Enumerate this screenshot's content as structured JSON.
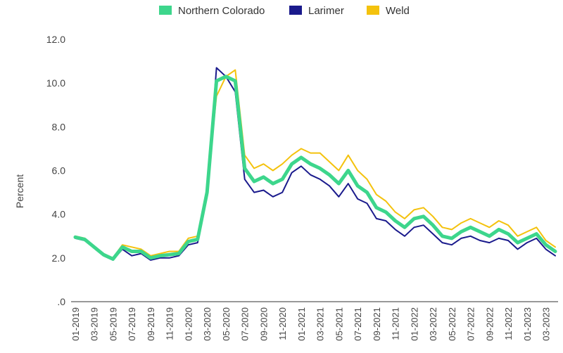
{
  "chart_data": {
    "type": "line",
    "ylabel": "Percent",
    "ylim": [
      0,
      12
    ],
    "yticks": [
      ".0",
      "2.0",
      "4.0",
      "6.0",
      "8.0",
      "10.0",
      "12.0"
    ],
    "legend_position": "top-center",
    "grid": false,
    "x": [
      "01-2019",
      "02-2019",
      "03-2019",
      "04-2019",
      "05-2019",
      "06-2019",
      "07-2019",
      "08-2019",
      "09-2019",
      "10-2019",
      "11-2019",
      "12-2019",
      "01-2020",
      "02-2020",
      "03-2020",
      "04-2020",
      "05-2020",
      "06-2020",
      "07-2020",
      "08-2020",
      "09-2020",
      "10-2020",
      "11-2020",
      "12-2020",
      "01-2021",
      "02-2021",
      "03-2021",
      "04-2021",
      "05-2021",
      "06-2021",
      "07-2021",
      "08-2021",
      "09-2021",
      "10-2021",
      "11-2021",
      "12-2021",
      "01-2022",
      "02-2022",
      "03-2022",
      "04-2022",
      "05-2022",
      "06-2022",
      "07-2022",
      "08-2022",
      "09-2022",
      "10-2022",
      "11-2022",
      "12-2022",
      "01-2023",
      "02-2023",
      "03-2023",
      "04-2023"
    ],
    "xtick_labels": [
      "01-2019",
      "03-2019",
      "05-2019",
      "07-2019",
      "09-2019",
      "11-2019",
      "01-2020",
      "03-2020",
      "05-2020",
      "07-2020",
      "09-2020",
      "11-2020",
      "01-2021",
      "03-2021",
      "05-2021",
      "07-2021",
      "09-2021",
      "11-2021",
      "01-2022",
      "03-2022",
      "05-2022",
      "07-2022",
      "09-2022",
      "11-2022",
      "01-2023",
      "03-2023"
    ],
    "series": [
      {
        "name": "Weld",
        "color": "#F4C20D",
        "values": [
          3.0,
          2.9,
          2.5,
          2.2,
          2.0,
          2.6,
          2.5,
          2.4,
          2.1,
          2.2,
          2.3,
          2.3,
          2.9,
          3.0,
          5.2,
          9.4,
          10.3,
          10.6,
          6.7,
          6.1,
          6.3,
          6.0,
          6.3,
          6.7,
          7.0,
          6.8,
          6.8,
          6.4,
          6.0,
          6.7,
          6.0,
          5.6,
          4.9,
          4.6,
          4.1,
          3.8,
          4.2,
          4.3,
          3.9,
          3.4,
          3.3,
          3.6,
          3.8,
          3.6,
          3.4,
          3.7,
          3.5,
          3.0,
          3.2,
          3.4,
          2.8,
          2.5
        ]
      },
      {
        "name": "Larimer",
        "color": "#1A1A8C",
        "values": [
          2.9,
          2.8,
          2.5,
          2.1,
          1.9,
          2.4,
          2.1,
          2.2,
          1.9,
          2.0,
          2.0,
          2.1,
          2.6,
          2.7,
          4.8,
          10.7,
          10.3,
          9.6,
          5.6,
          5.0,
          5.1,
          4.8,
          5.0,
          5.9,
          6.2,
          5.8,
          5.6,
          5.3,
          4.8,
          5.4,
          4.7,
          4.5,
          3.8,
          3.7,
          3.3,
          3.0,
          3.4,
          3.5,
          3.1,
          2.7,
          2.6,
          2.9,
          3.0,
          2.8,
          2.7,
          2.9,
          2.8,
          2.4,
          2.7,
          2.9,
          2.4,
          2.1
        ]
      },
      {
        "name": "Northern Colorado",
        "color": "#3DD68C",
        "values": [
          2.95,
          2.85,
          2.5,
          2.15,
          1.95,
          2.5,
          2.3,
          2.3,
          2.0,
          2.1,
          2.15,
          2.2,
          2.75,
          2.85,
          5.0,
          10.1,
          10.3,
          10.1,
          6.1,
          5.5,
          5.7,
          5.4,
          5.6,
          6.3,
          6.6,
          6.3,
          6.1,
          5.8,
          5.4,
          6.0,
          5.3,
          5.0,
          4.3,
          4.1,
          3.7,
          3.4,
          3.8,
          3.9,
          3.5,
          3.0,
          2.9,
          3.2,
          3.4,
          3.2,
          3.0,
          3.3,
          3.1,
          2.7,
          2.9,
          3.1,
          2.6,
          2.3
        ]
      }
    ],
    "legend": [
      {
        "name": "Northern Colorado",
        "color": "#3DD68C"
      },
      {
        "name": "Larimer",
        "color": "#1A1A8C"
      },
      {
        "name": "Weld",
        "color": "#F4C20D"
      }
    ]
  }
}
